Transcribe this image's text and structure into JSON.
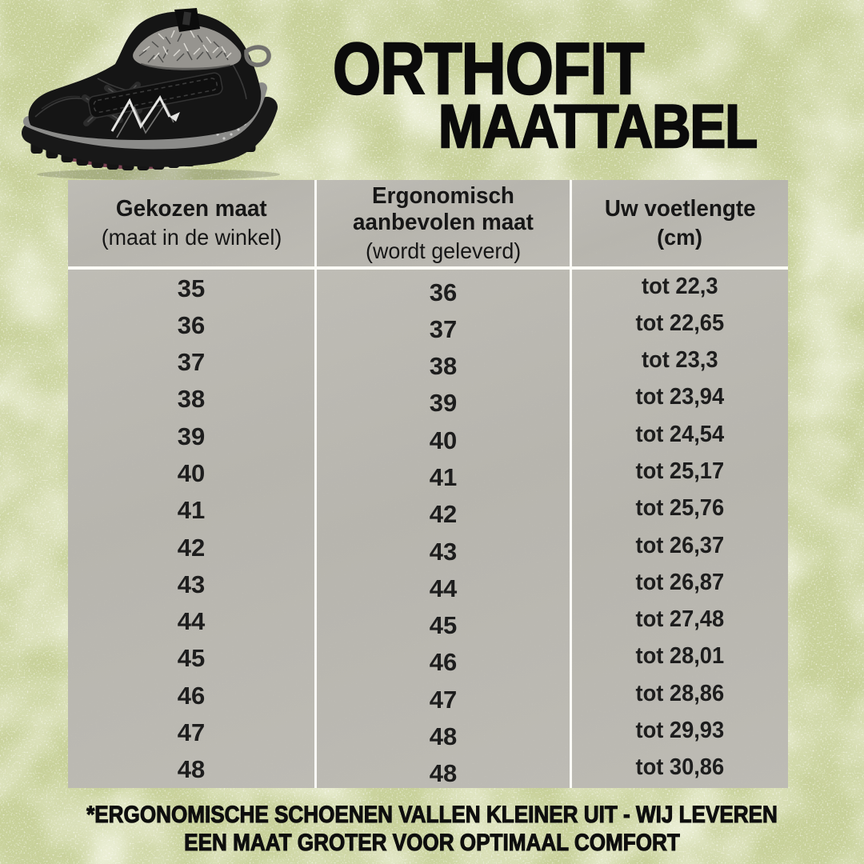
{
  "title": {
    "line1": "ORTHOFIT",
    "line2": "MAATTABEL"
  },
  "hero": {
    "image_name": "black-winter-boot-photo"
  },
  "table": {
    "columns": [
      {
        "title": "Gekozen maat",
        "subtitle": "(maat in de winkel)"
      },
      {
        "title": "Ergonomisch aanbevolen maat",
        "subtitle": "(wordt geleverd)"
      },
      {
        "title": "Uw voetlengte",
        "subtitle": "(cm)"
      }
    ],
    "rows": [
      {
        "chosen": "35",
        "delivered": "36",
        "foot_length": "tot 22,3"
      },
      {
        "chosen": "36",
        "delivered": "37",
        "foot_length": "tot 22,65"
      },
      {
        "chosen": "37",
        "delivered": "38",
        "foot_length": "tot 23,3"
      },
      {
        "chosen": "38",
        "delivered": "39",
        "foot_length": "tot 23,94"
      },
      {
        "chosen": "39",
        "delivered": "40",
        "foot_length": "tot 24,54"
      },
      {
        "chosen": "40",
        "delivered": "41",
        "foot_length": "tot 25,17"
      },
      {
        "chosen": "41",
        "delivered": "42",
        "foot_length": "tot 25,76"
      },
      {
        "chosen": "42",
        "delivered": "43",
        "foot_length": "tot 26,37"
      },
      {
        "chosen": "43",
        "delivered": "44",
        "foot_length": "tot 26,87"
      },
      {
        "chosen": "44",
        "delivered": "45",
        "foot_length": "tot 27,48"
      },
      {
        "chosen": "45",
        "delivered": "46",
        "foot_length": "tot 28,01"
      },
      {
        "chosen": "46",
        "delivered": "47",
        "foot_length": "tot 28,86"
      },
      {
        "chosen": "47",
        "delivered": "48",
        "foot_length": "tot 29,93"
      },
      {
        "chosen": "48",
        "delivered": "48",
        "foot_length": "tot 30,86"
      }
    ]
  },
  "footnote": {
    "line1": "*ERGONOMISCHE SCHOENEN VALLEN KLEINER UIT - WIJ LEVEREN",
    "line2": "EEN MAAT GROTER VOOR OPTIMAAL COMFORT"
  },
  "colors": {
    "background_green": "#c8d19a",
    "table_gray": "#bab8b1",
    "divider_white": "#fbfbf6",
    "text_black": "#0e0e0e"
  }
}
